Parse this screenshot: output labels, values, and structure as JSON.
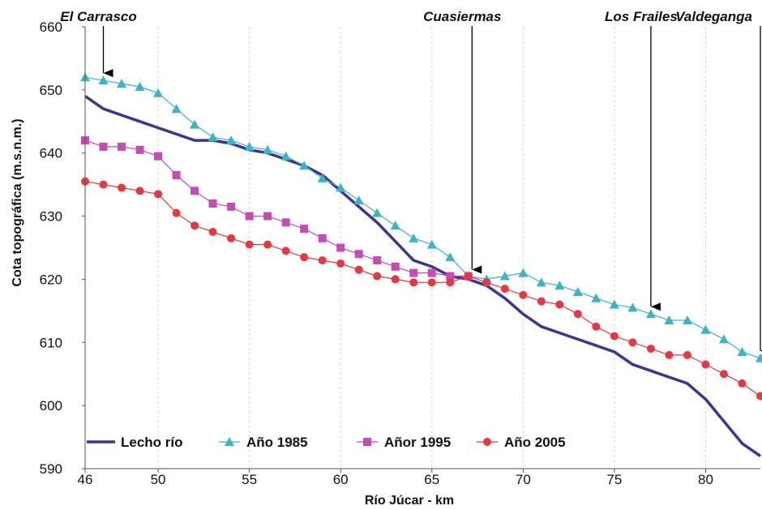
{
  "chart_data": {
    "type": "line",
    "title": "",
    "xlabel": "Río Júcar - km",
    "ylabel": "Cota topográfica (m.s.n.m.)",
    "xlim": [
      46,
      83
    ],
    "ylim": [
      590,
      660
    ],
    "xticks": [
      46,
      50,
      55,
      60,
      65,
      70,
      75,
      80
    ],
    "yticks": [
      590,
      600,
      610,
      620,
      630,
      640,
      650,
      660
    ],
    "grid": "vertical dashed",
    "legend_position": "bottom",
    "series": [
      {
        "name": "Lecho río",
        "color": "#3a3496",
        "marker": "none",
        "x": [
          46,
          47,
          48,
          49,
          50,
          51,
          52,
          53,
          54,
          55,
          56,
          57,
          58,
          59,
          60,
          61,
          62,
          63,
          64,
          65,
          66,
          67,
          68,
          69,
          70,
          71,
          72,
          73,
          74,
          75,
          76,
          77,
          78,
          79,
          80,
          81,
          82,
          83
        ],
        "y": [
          649,
          647,
          646,
          645,
          644,
          643,
          642,
          642,
          641.5,
          640.5,
          640,
          639,
          638,
          636.5,
          634,
          631.5,
          629,
          626,
          623,
          622,
          620.5,
          620,
          619,
          617,
          614.5,
          612.5,
          611.5,
          610.5,
          609.5,
          608.5,
          606.5,
          605.5,
          604.5,
          603.5,
          601,
          597.5,
          594,
          592
        ]
      },
      {
        "name": "Año 1985",
        "color": "#3bb3c8",
        "marker": "triangle",
        "x": [
          46,
          47,
          48,
          49,
          50,
          51,
          52,
          53,
          54,
          55,
          56,
          57,
          58,
          59,
          60,
          61,
          62,
          63,
          64,
          65,
          66,
          67,
          68,
          69,
          70,
          71,
          72,
          73,
          74,
          75,
          76,
          77,
          78,
          79,
          80,
          81,
          82,
          83
        ],
        "y": [
          652,
          651.5,
          651,
          650.5,
          649.5,
          647,
          644.5,
          642.5,
          642,
          641,
          640.5,
          639.5,
          638,
          636,
          634.5,
          632.5,
          630.5,
          628.5,
          626.5,
          625.5,
          623.5,
          620.5,
          620,
          620.5,
          621,
          619.5,
          619,
          618,
          617,
          616,
          615.5,
          614.5,
          613.5,
          613.5,
          612,
          610.5,
          608.5,
          607.5
        ]
      },
      {
        "name": "Añor 1995",
        "color": "#c64bb4",
        "marker": "square",
        "x": [
          46,
          47,
          48,
          49,
          50,
          51,
          52,
          53,
          54,
          55,
          56,
          57,
          58,
          59,
          60,
          61,
          62,
          63,
          64,
          65,
          66,
          67
        ],
        "y": [
          642,
          641,
          641,
          640.5,
          639.5,
          636.5,
          634,
          632,
          631.5,
          630,
          630,
          629,
          628,
          626.5,
          625,
          624,
          623,
          622,
          621,
          621,
          620.5,
          620.5
        ]
      },
      {
        "name": "Año 2005",
        "color": "#e8373f",
        "marker": "circle",
        "x": [
          46,
          47,
          48,
          49,
          50,
          51,
          52,
          53,
          54,
          55,
          56,
          57,
          58,
          59,
          60,
          61,
          62,
          63,
          64,
          65,
          66,
          67,
          68,
          69,
          70,
          71,
          72,
          73,
          74,
          75,
          76,
          77,
          78,
          79,
          80,
          81,
          82,
          83
        ],
        "y": [
          635.5,
          635,
          634.5,
          634,
          633.5,
          630.5,
          628.5,
          627.5,
          626.5,
          625.5,
          625.5,
          624.5,
          623.5,
          623,
          622.5,
          621.5,
          620.5,
          620,
          619.5,
          619.5,
          619.5,
          620.5,
          619.5,
          618.5,
          617.5,
          616.5,
          616,
          614.5,
          612.5,
          611,
          610,
          609,
          608,
          608,
          606.5,
          605,
          603.5,
          601.5
        ]
      }
    ],
    "annotations": [
      {
        "label": "El Carrasco",
        "x": 47
      },
      {
        "label": "Cuasiermas",
        "x": 67.2
      },
      {
        "label": "Los Frailes",
        "x": 77
      },
      {
        "label": "Valdeganga",
        "x": 83
      }
    ]
  }
}
